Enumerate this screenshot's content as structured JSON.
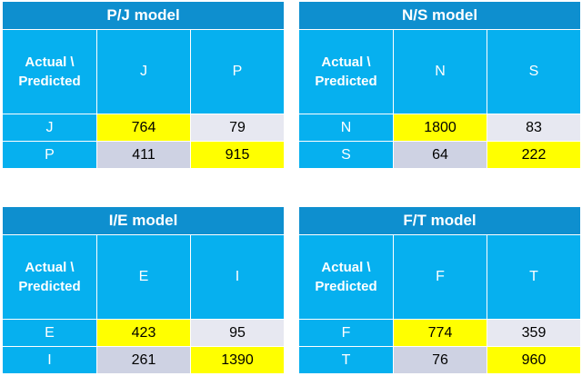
{
  "corner_label_line1": "Actual \\",
  "corner_label_line2": "Predicted",
  "models": [
    {
      "title": "P/J model",
      "classes": [
        "J",
        "P"
      ],
      "matrix": [
        [
          764,
          79
        ],
        [
          411,
          915
        ]
      ]
    },
    {
      "title": "N/S model",
      "classes": [
        "N",
        "S"
      ],
      "matrix": [
        [
          1800,
          83
        ],
        [
          64,
          222
        ]
      ]
    },
    {
      "title": "I/E model",
      "classes": [
        "E",
        "I"
      ],
      "matrix": [
        [
          423,
          95
        ],
        [
          261,
          1390
        ]
      ]
    },
    {
      "title": "F/T model",
      "classes": [
        "F",
        "T"
      ],
      "matrix": [
        [
          774,
          359
        ],
        [
          76,
          960
        ]
      ]
    }
  ],
  "colors": {
    "title_bg": "#0e8fcf",
    "header_bg": "#06b0ef",
    "correct_bg": "#ffff00",
    "error_bg_row1": "#e7e8f1",
    "error_bg_row2": "#ced2e3"
  }
}
